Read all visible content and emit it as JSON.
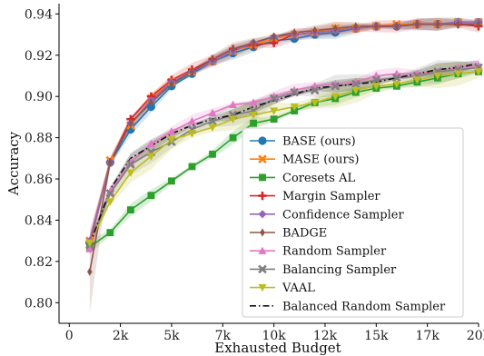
{
  "chart_data": {
    "type": "line",
    "title": "",
    "xlabel": "Exhausted Budget",
    "ylabel": "Accuracy",
    "xlim": [
      -500,
      20000
    ],
    "ylim": [
      0.79,
      0.945
    ],
    "x_ticks": [
      0,
      2500,
      5000,
      7500,
      10000,
      12500,
      15000,
      17500,
      20000
    ],
    "x_tick_labels": [
      "0",
      "2k",
      "5k",
      "7k",
      "10k",
      "12k",
      "15k",
      "17k",
      "20k"
    ],
    "y_ticks": [
      0.8,
      0.82,
      0.84,
      0.86,
      0.88,
      0.9,
      0.92,
      0.94
    ],
    "y_tick_labels": [
      "0.80",
      "0.82",
      "0.84",
      "0.86",
      "0.88",
      "0.90",
      "0.92",
      "0.94"
    ],
    "grid": false,
    "legend_position": "lower-right",
    "x": [
      1000,
      2000,
      3000,
      4000,
      5000,
      6000,
      7000,
      8000,
      9000,
      10000,
      11000,
      12000,
      13000,
      14000,
      15000,
      16000,
      17000,
      18000,
      19000,
      20000
    ],
    "series": [
      {
        "name": "BASE (ours)",
        "color": "#1f77b4",
        "marker": "circle",
        "linestyle": "solid",
        "values": [
          0.829,
          0.868,
          0.884,
          0.895,
          0.905,
          0.911,
          0.917,
          0.921,
          0.924,
          0.927,
          0.928,
          0.93,
          0.931,
          0.933,
          0.934,
          0.934,
          0.935,
          0.935,
          0.936,
          0.936
        ]
      },
      {
        "name": "MASE (ours)",
        "color": "#ff7f0e",
        "marker": "x",
        "linestyle": "solid",
        "values": [
          0.83,
          0.869,
          0.886,
          0.899,
          0.907,
          0.912,
          0.917,
          0.922,
          0.925,
          0.928,
          0.93,
          0.931,
          0.933,
          0.933,
          0.934,
          0.935,
          0.935,
          0.935,
          0.936,
          0.936
        ]
      },
      {
        "name": "Coresets AL",
        "color": "#2ca02c",
        "marker": "square",
        "linestyle": "solid",
        "values": [
          0.827,
          0.834,
          0.845,
          0.852,
          0.859,
          0.866,
          0.872,
          0.88,
          0.887,
          0.889,
          0.893,
          0.897,
          0.899,
          0.902,
          0.904,
          0.905,
          0.907,
          0.909,
          0.911,
          0.912
        ]
      },
      {
        "name": "Margin Sampler",
        "color": "#d62728",
        "marker": "plus",
        "linestyle": "solid",
        "values": [
          0.829,
          0.868,
          0.889,
          0.9,
          0.908,
          0.913,
          0.918,
          0.923,
          0.925,
          0.926,
          0.93,
          0.931,
          0.932,
          0.933,
          0.934,
          0.934,
          0.935,
          0.935,
          0.935,
          0.934
        ]
      },
      {
        "name": "Confidence Sampler",
        "color": "#9467bd",
        "marker": "diamond",
        "linestyle": "solid",
        "values": [
          0.83,
          0.868,
          0.887,
          0.898,
          0.907,
          0.912,
          0.917,
          0.922,
          0.926,
          0.929,
          0.93,
          0.931,
          0.932,
          0.933,
          0.934,
          0.934,
          0.935,
          0.935,
          0.936,
          0.936
        ]
      },
      {
        "name": "BADGE",
        "color": "#8c564b",
        "marker": "thin-diamond",
        "linestyle": "solid",
        "values": [
          0.815,
          0.868,
          0.887,
          0.897,
          0.906,
          0.912,
          0.918,
          0.923,
          0.926,
          0.929,
          0.931,
          0.932,
          0.933,
          0.934,
          0.934,
          0.934,
          0.935,
          0.935,
          0.935,
          0.935
        ]
      },
      {
        "name": "Random Sampler",
        "color": "#e377c2",
        "marker": "triangle-up",
        "linestyle": "solid",
        "values": [
          0.826,
          0.854,
          0.868,
          0.877,
          0.883,
          0.888,
          0.892,
          0.896,
          0.897,
          0.9,
          0.903,
          0.905,
          0.906,
          0.907,
          0.91,
          0.911,
          0.911,
          0.912,
          0.914,
          0.915
        ]
      },
      {
        "name": "Balancing Sampler",
        "color": "#7f7f7f",
        "marker": "x",
        "linestyle": "solid",
        "values": [
          0.828,
          0.853,
          0.867,
          0.873,
          0.878,
          0.884,
          0.888,
          0.891,
          0.893,
          0.899,
          0.902,
          0.903,
          0.905,
          0.906,
          0.908,
          0.909,
          0.91,
          0.912,
          0.913,
          0.914
        ]
      },
      {
        "name": "VAAL",
        "color": "#bcbd22",
        "marker": "triangle-down",
        "linestyle": "solid",
        "values": [
          0.829,
          0.849,
          0.863,
          0.871,
          0.879,
          0.882,
          0.885,
          0.889,
          0.891,
          0.893,
          0.895,
          0.897,
          0.9,
          0.903,
          0.905,
          0.906,
          0.908,
          0.91,
          0.911,
          0.912
        ]
      },
      {
        "name": "Balanced Random Sampler",
        "color": "#111111",
        "marker": "none",
        "linestyle": "dashdot",
        "values": [
          0.828,
          0.855,
          0.87,
          0.876,
          0.882,
          0.886,
          0.889,
          0.891,
          0.895,
          0.898,
          0.901,
          0.904,
          0.905,
          0.906,
          0.907,
          0.909,
          0.911,
          0.913,
          0.914,
          0.916
        ]
      }
    ]
  }
}
